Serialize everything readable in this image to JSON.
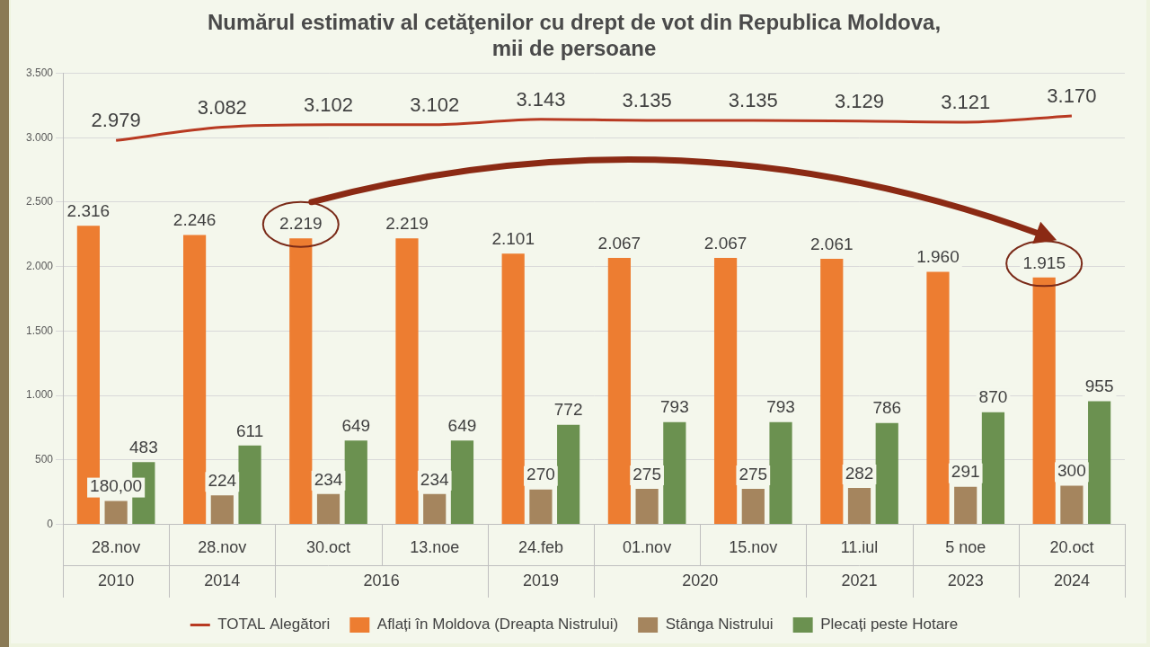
{
  "chart_data": {
    "type": "bar",
    "title": [
      "Numărul estimativ al cetăţenilor cu drept de vot din Republica Moldova,",
      "mii de persoane"
    ],
    "categories": [
      "28.nov",
      "28.nov",
      "30.oct",
      "13.noe",
      "24.feb",
      "01.nov",
      "15.nov",
      "11.iul",
      "5 noe",
      "20.oct"
    ],
    "category_groups": [
      "2010",
      "2014",
      "2016",
      "2016",
      "2019",
      "2020",
      "2020",
      "2021",
      "2023",
      "2024"
    ],
    "series": [
      {
        "name": "Aflați în Moldova (Dreapta Nistrului)",
        "color": "#ed7d31",
        "values": [
          2316,
          2246,
          2219,
          2219,
          2101,
          2067,
          2067,
          2061,
          1960,
          1915
        ],
        "value_labels": [
          "2.316",
          "2.246",
          "2.219",
          "2.219",
          "2.101",
          "2.067",
          "2.067",
          "2.061",
          "1.960",
          "1.915"
        ]
      },
      {
        "name": "Stânga Nistrului",
        "color": "#a5855e",
        "values": [
          180,
          224,
          234,
          234,
          270,
          275,
          275,
          282,
          291,
          300
        ],
        "value_labels": [
          "180,00",
          "224",
          "234",
          "234",
          "270",
          "275",
          "275",
          "282",
          "291",
          "300"
        ]
      },
      {
        "name": "Plecați peste Hotare",
        "color": "#6b9150",
        "values": [
          483,
          611,
          649,
          649,
          772,
          793,
          793,
          786,
          870,
          955
        ],
        "value_labels": [
          "483",
          "611",
          "649",
          "649",
          "772",
          "793",
          "793",
          "786",
          "870",
          "955"
        ]
      },
      {
        "name": "TOTAL Alegători",
        "type": "line",
        "color": "#b83a22",
        "values": [
          2979,
          3082,
          3102,
          3102,
          3143,
          3135,
          3135,
          3129,
          3121,
          3170
        ],
        "value_labels": [
          "2.979",
          "3.082",
          "3.102",
          "3.102",
          "3.143",
          "3.135",
          "3.135",
          "3.129",
          "3.121",
          "3.170"
        ]
      }
    ],
    "ylim": [
      0,
      3500
    ],
    "yticks": [
      0,
      500,
      {
        "value": 1000,
        "label": "1.000"
      },
      {
        "value": 1500,
        "label": "1.500"
      },
      {
        "value": 2000,
        "label": "2.000"
      },
      {
        "value": 2500,
        "label": "2.500"
      },
      {
        "value": 3000,
        "label": "3.000"
      },
      {
        "value": 3500,
        "label": "3.500"
      }
    ],
    "grid": true,
    "legend": "bottom",
    "data_labels": true
  }
}
